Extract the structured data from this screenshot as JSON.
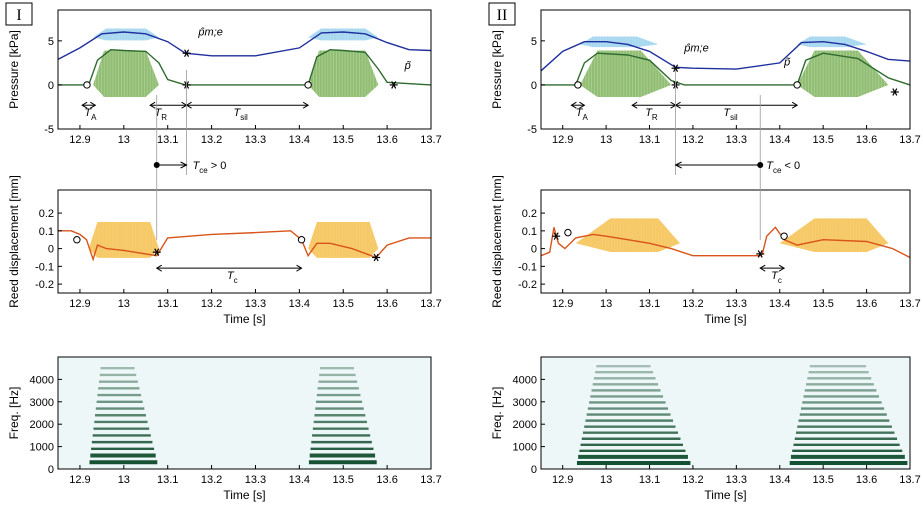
{
  "chart_data": [
    {
      "id": "I-pressure",
      "type": "line",
      "column": "I",
      "panel_label": "I",
      "ylabel": "Pressure [kPa]",
      "xlabel": "",
      "xlim": [
        12.85,
        13.7
      ],
      "ylim": [
        -5,
        8.5
      ],
      "xticks": [
        "12.9",
        "13",
        "13.1",
        "13.2",
        "13.3",
        "13.4",
        "13.5",
        "13.6",
        "13.7"
      ],
      "yticks": [
        "-5",
        "0",
        "5"
      ],
      "notes": [
        {
          "blocks": [
            [
              12.93,
              13.08
            ],
            [
              13.42,
              13.58
            ]
          ],
          "peak": 3.9,
          "attack": 0.025,
          "decay": 0.03,
          "base": 0,
          "color": "#9cc97a",
          "stroke": "#2f6b2f"
        },
        {
          "blocks": [
            [
              12.93,
              13.08
            ],
            [
              13.42,
              13.58
            ]
          ],
          "peak": 1.0,
          "attack": 0.03,
          "decay": 0.03,
          "base": 5.4,
          "color": "#a8d8f0",
          "stroke": "#7fc4ea"
        }
      ],
      "series": [
        {
          "name": "p_m,e",
          "label": "p̂m;e",
          "color": "#1f2f9e",
          "x": [
            12.85,
            12.9,
            12.95,
            13.0,
            13.05,
            13.1,
            13.14,
            13.2,
            13.3,
            13.4,
            13.45,
            13.5,
            13.55,
            13.6,
            13.65,
            13.7
          ],
          "y": [
            2.9,
            4.2,
            5.8,
            6.0,
            5.8,
            4.9,
            3.6,
            3.3,
            3.3,
            4.2,
            5.9,
            6.0,
            5.8,
            4.8,
            4.0,
            3.9
          ]
        },
        {
          "name": "p_tilde",
          "label": "p̃",
          "color": "#2f6b2f",
          "x": [
            12.85,
            12.92,
            12.94,
            12.97,
            13.0,
            13.05,
            13.08,
            13.1,
            13.14,
            13.3,
            13.42,
            13.44,
            13.47,
            13.5,
            13.55,
            13.58,
            13.6,
            13.7
          ],
          "y": [
            0,
            0,
            2.8,
            4.0,
            3.9,
            3.8,
            2.5,
            0.6,
            0,
            0,
            0,
            3.2,
            4.0,
            3.9,
            3.7,
            1.8,
            0.3,
            0
          ]
        }
      ],
      "markers": [
        {
          "shape": "circle",
          "x": 12.916,
          "y": 0
        },
        {
          "shape": "star",
          "x": 13.143,
          "y": 0
        },
        {
          "shape": "star",
          "x": 13.143,
          "y": 3.6
        },
        {
          "shape": "circle",
          "x": 13.42,
          "y": 0
        },
        {
          "shape": "star",
          "x": 13.615,
          "y": 0
        }
      ],
      "annotations": [
        {
          "text": "p̂m;e",
          "x": 13.17,
          "y": 5.6,
          "color": "#1f2f9e"
        },
        {
          "text": "p̃",
          "x": 13.64,
          "y": 1.8,
          "color": "#2f6b2f"
        },
        {
          "text": "T",
          "sub": "A",
          "x": 12.91,
          "y": -3.5
        },
        {
          "text": "T",
          "sub": "R",
          "x": 13.07,
          "y": -3.5
        },
        {
          "text": "T",
          "sub": "sil",
          "x": 13.25,
          "y": -3.5
        }
      ],
      "intervals": [
        {
          "x0": 12.905,
          "x1": 12.935,
          "y": -2.3
        },
        {
          "x0": 13.06,
          "x1": 13.143,
          "y": -2.3
        },
        {
          "x0": 13.143,
          "x1": 13.42,
          "y": -2.3
        }
      ]
    },
    {
      "id": "I-reed",
      "type": "line",
      "column": "I",
      "ylabel": "Reed displacement [mm]",
      "xlabel": "Time [s]",
      "xlim": [
        12.85,
        13.7
      ],
      "ylim": [
        -0.25,
        0.33
      ],
      "xticks": [
        "12.9",
        "13",
        "13.1",
        "13.2",
        "13.3",
        "13.4",
        "13.5",
        "13.6",
        "13.7"
      ],
      "yticks": [
        "-0.2",
        "-0.1",
        "0",
        "0.1",
        "0.2"
      ],
      "notes": [
        {
          "blocks": [
            [
              12.92,
              13.08
            ],
            [
              13.42,
              13.58
            ]
          ],
          "peak": 0.15,
          "attack": 0.02,
          "decay": 0.02,
          "base": 0.0,
          "color": "#f6c85f",
          "stroke": "#f0b040"
        }
      ],
      "series": [
        {
          "name": "reed",
          "label": "",
          "color": "#d9541a",
          "x": [
            12.85,
            12.88,
            12.9,
            12.915,
            12.93,
            12.94,
            12.96,
            13.0,
            13.05,
            13.075,
            13.1,
            13.2,
            13.3,
            13.38,
            13.405,
            13.42,
            13.44,
            13.47,
            13.52,
            13.575,
            13.6,
            13.65,
            13.7
          ],
          "y": [
            0.1,
            0.1,
            0.08,
            0.05,
            -0.06,
            0.02,
            0.0,
            -0.01,
            -0.03,
            -0.04,
            0.06,
            0.08,
            0.09,
            0.1,
            0.05,
            -0.04,
            0.03,
            0.03,
            -0.0,
            -0.05,
            0.02,
            0.06,
            0.06
          ]
        }
      ],
      "markers": [
        {
          "shape": "circle",
          "x": 12.893,
          "y": 0.05
        },
        {
          "shape": "star",
          "x": 13.075,
          "y": -0.02
        },
        {
          "shape": "circle",
          "x": 13.405,
          "y": 0.05
        },
        {
          "shape": "star",
          "x": 13.575,
          "y": -0.05
        }
      ],
      "annotations": [
        {
          "text": "T",
          "sub": "c",
          "x": 13.235,
          "y": -0.17
        }
      ],
      "intervals": [
        {
          "x0": 13.075,
          "x1": 13.405,
          "y": -0.11
        }
      ]
    },
    {
      "id": "I-spectrogram",
      "type": "heatmap",
      "column": "I",
      "ylabel": "Freq. [Hz]",
      "xlabel": "Time [s]",
      "xlim": [
        12.85,
        13.7
      ],
      "ylim": [
        0,
        5000
      ],
      "xticks": [
        "12.9",
        "13",
        "13.1",
        "13.2",
        "13.3",
        "13.4",
        "13.5",
        "13.6",
        "13.7"
      ],
      "yticks": [
        "0",
        "1000",
        "2000",
        "3000",
        "4000"
      ],
      "notes": [
        {
          "t0": 12.92,
          "t1": 13.08,
          "fmax": 4800
        },
        {
          "t0": 13.42,
          "t1": 13.58,
          "fmax": 4800
        }
      ],
      "f0": 300
    },
    {
      "id": "II-pressure",
      "type": "line",
      "column": "II",
      "panel_label": "II",
      "ylabel": "Pressure [kPa]",
      "xlabel": "",
      "xlim": [
        12.85,
        13.7
      ],
      "ylim": [
        -5,
        8.5
      ],
      "xticks": [
        "12.9",
        "13",
        "13.1",
        "13.2",
        "13.3",
        "13.4",
        "13.5",
        "13.6",
        "13.7"
      ],
      "yticks": [
        "-5",
        "0",
        "5"
      ],
      "notes": [
        {
          "blocks": [
            [
              12.94,
              13.15
            ],
            [
              13.44,
              13.65
            ]
          ],
          "peak": 3.9,
          "attack": 0.04,
          "decay": 0.07,
          "base": 0,
          "color": "#9cc97a",
          "stroke": "#2f6b2f"
        },
        {
          "blocks": [
            [
              12.94,
              13.12
            ],
            [
              13.44,
              13.6
            ]
          ],
          "peak": 0.9,
          "attack": 0.03,
          "decay": 0.05,
          "base": 4.6,
          "color": "#a8d8f0",
          "stroke": "#7fc4ea"
        }
      ],
      "series": [
        {
          "name": "p_m,e",
          "label": "p̂m;e",
          "color": "#1f2f9e",
          "x": [
            12.85,
            12.9,
            12.95,
            13.0,
            13.05,
            13.1,
            13.16,
            13.2,
            13.3,
            13.4,
            13.45,
            13.5,
            13.55,
            13.6,
            13.65,
            13.7
          ],
          "y": [
            1.6,
            3.8,
            4.9,
            4.9,
            4.6,
            3.8,
            2.0,
            1.9,
            1.8,
            2.5,
            4.8,
            4.9,
            4.6,
            3.8,
            2.9,
            2.7
          ]
        },
        {
          "name": "p_tilde",
          "label": "p̃",
          "color": "#2f6b2f",
          "x": [
            12.85,
            12.93,
            12.95,
            12.98,
            13.05,
            13.1,
            13.15,
            13.18,
            13.3,
            13.44,
            13.46,
            13.5,
            13.58,
            13.65,
            13.7
          ],
          "y": [
            0,
            0,
            2.5,
            3.6,
            3.4,
            2.8,
            0.5,
            0,
            0,
            0,
            2.8,
            3.6,
            3.0,
            0.8,
            0
          ]
        }
      ],
      "markers": [
        {
          "shape": "circle",
          "x": 12.935,
          "y": 0
        },
        {
          "shape": "star",
          "x": 13.16,
          "y": 0
        },
        {
          "shape": "star",
          "x": 13.16,
          "y": 1.9
        },
        {
          "shape": "circle",
          "x": 13.44,
          "y": 0
        },
        {
          "shape": "star",
          "x": 13.665,
          "y": -0.8
        }
      ],
      "annotations": [
        {
          "text": "p̂m;e",
          "x": 13.18,
          "y": 3.8,
          "color": "#1f2f9e"
        },
        {
          "text": "p̃",
          "x": 13.41,
          "y": 2.2,
          "color": "#2f6b2f"
        },
        {
          "text": "T",
          "sub": "A",
          "x": 12.93,
          "y": -3.5
        },
        {
          "text": "T",
          "sub": "R",
          "x": 13.09,
          "y": -3.5
        },
        {
          "text": "T",
          "sub": "sil",
          "x": 13.27,
          "y": -3.5
        }
      ],
      "intervals": [
        {
          "x0": 12.92,
          "x1": 12.95,
          "y": -2.3
        },
        {
          "x0": 13.06,
          "x1": 13.16,
          "y": -2.3
        },
        {
          "x0": 13.16,
          "x1": 13.44,
          "y": -2.3
        }
      ]
    },
    {
      "id": "II-reed",
      "type": "line",
      "column": "II",
      "ylabel": "Reed displacement [mm]",
      "xlabel": "Time [s]",
      "xlim": [
        12.85,
        13.7
      ],
      "ylim": [
        -0.25,
        0.33
      ],
      "xticks": [
        "12.9",
        "13",
        "13.1",
        "13.2",
        "13.3",
        "13.4",
        "13.5",
        "13.6",
        "13.7"
      ],
      "yticks": [
        "-0.2",
        "-0.1",
        "0",
        "0.1",
        "0.2"
      ],
      "notes": [
        {
          "blocks": [
            [
              12.93,
              13.17
            ],
            [
              13.4,
              13.65
            ]
          ],
          "peak": 0.14,
          "attack": 0.08,
          "decay": 0.05,
          "base": 0.03,
          "color": "#f6c85f",
          "stroke": "#f0b040"
        }
      ],
      "series": [
        {
          "name": "reed",
          "label": "",
          "color": "#d9541a",
          "x": [
            12.85,
            12.87,
            12.88,
            12.89,
            12.905,
            12.93,
            12.97,
            13.0,
            13.05,
            13.1,
            13.15,
            13.2,
            13.3,
            13.355,
            13.36,
            13.37,
            13.39,
            13.41,
            13.44,
            13.5,
            13.6,
            13.66,
            13.7
          ],
          "y": [
            -0.04,
            -0.02,
            0.12,
            0.03,
            0.0,
            0.06,
            0.08,
            0.07,
            0.05,
            0.03,
            0.0,
            -0.04,
            -0.04,
            -0.04,
            -0.03,
            0.07,
            0.12,
            0.05,
            0.02,
            0.05,
            0.04,
            0.0,
            -0.05
          ]
        }
      ],
      "markers": [
        {
          "shape": "star",
          "x": 12.885,
          "y": 0.07
        },
        {
          "shape": "circle",
          "x": 12.912,
          "y": 0.09
        },
        {
          "shape": "star",
          "x": 13.355,
          "y": -0.03
        },
        {
          "shape": "circle",
          "x": 13.41,
          "y": 0.07
        }
      ],
      "annotations": [
        {
          "text": "T",
          "sub": "c",
          "x": 13.38,
          "y": -0.17
        }
      ],
      "intervals": [
        {
          "x0": 13.355,
          "x1": 13.41,
          "y": -0.11
        }
      ]
    },
    {
      "id": "II-spectrogram",
      "type": "heatmap",
      "column": "II",
      "ylabel": "Freq. [Hz]",
      "xlabel": "Time [s]",
      "xlim": [
        12.85,
        13.7
      ],
      "ylim": [
        0,
        5000
      ],
      "xticks": [
        "12.9",
        "13",
        "13.1",
        "13.2",
        "13.3",
        "13.4",
        "13.5",
        "13.6",
        "13.7"
      ],
      "yticks": [
        "0",
        "1000",
        "2000",
        "3000",
        "4000"
      ],
      "notes": [
        {
          "t0": 12.93,
          "t1": 13.2,
          "fmax": 4700
        },
        {
          "t0": 13.42,
          "t1": 13.7,
          "fmax": 4700
        }
      ],
      "f0": 270
    }
  ],
  "between_annotations": [
    {
      "column": "I",
      "text": "T",
      "sub": "ce",
      "relation": "> 0",
      "x_from": 13.075,
      "x_to": 13.143
    },
    {
      "column": "II",
      "text": "T",
      "sub": "ce",
      "relation": "< 0",
      "x_from": 13.355,
      "x_to": 13.16
    }
  ]
}
